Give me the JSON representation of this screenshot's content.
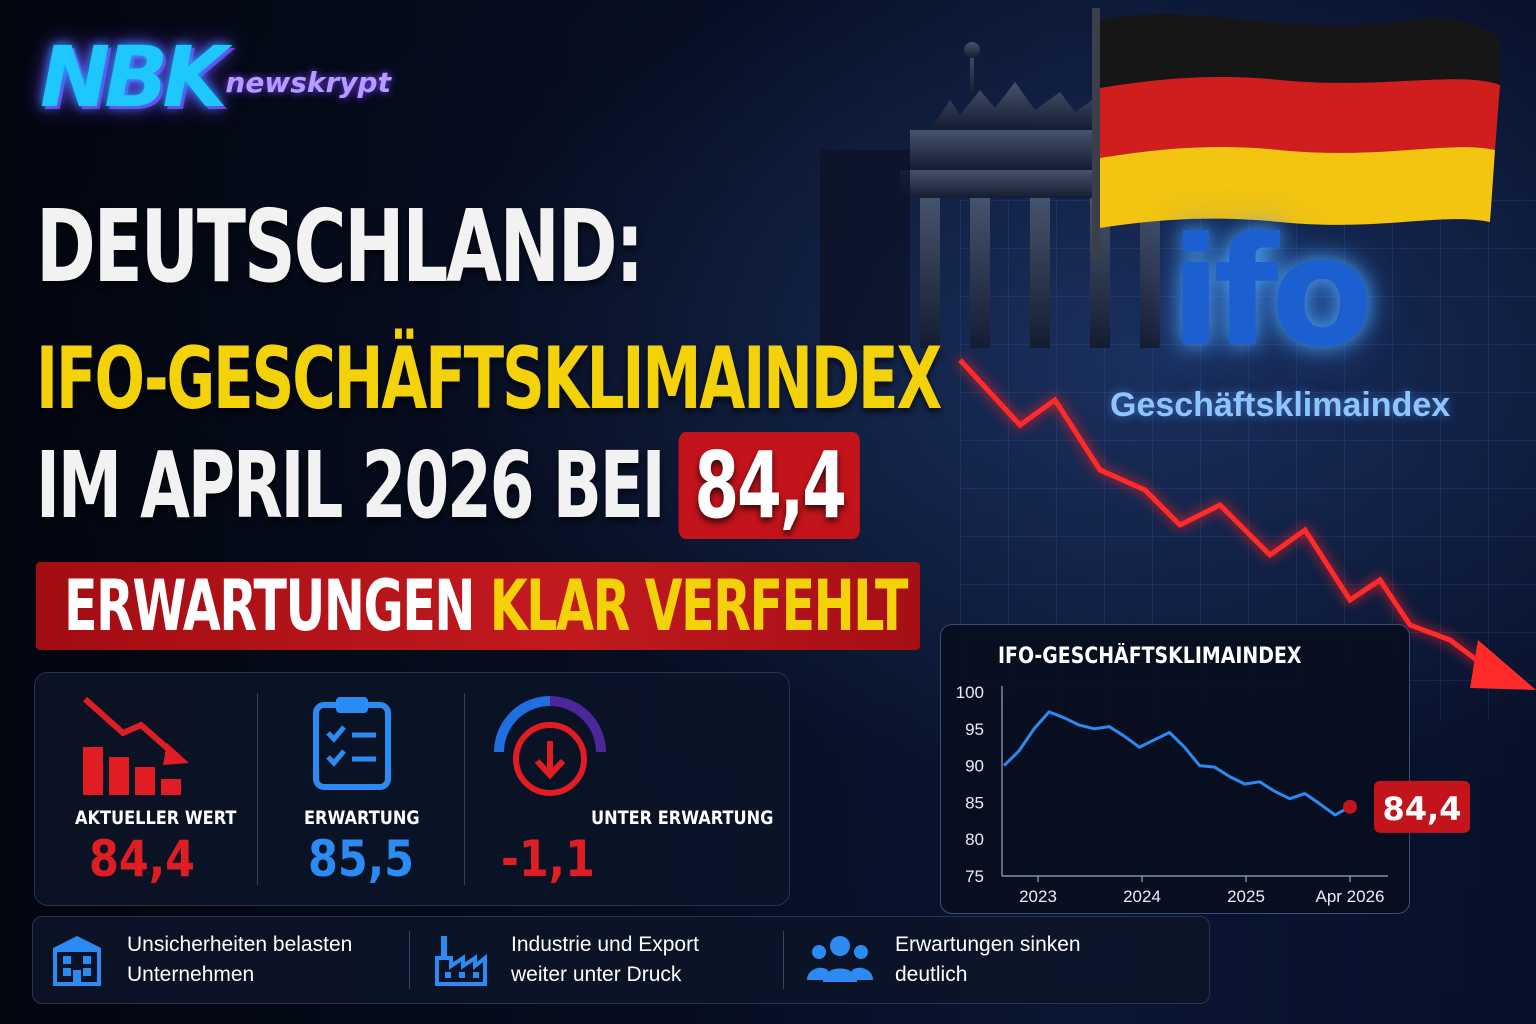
{
  "brand": {
    "mark": "NBK",
    "name": "newskrypt"
  },
  "headline": {
    "line1": "DEUTSCHLAND:",
    "line2": "IFO-GESCHÄFTSKLIMAINDEX",
    "line3_prefix": "IM APRIL 2026 BEI",
    "line3_value": "84,4",
    "banner_white": "ERWARTUNGEN",
    "banner_yellow": "KLAR VERFEHLT"
  },
  "stats": [
    {
      "label": "AKTUELLER WERT",
      "value": "84,4",
      "color": "#e11d24",
      "icon": "bar-chart-down-icon"
    },
    {
      "label": "ERWARTUNG",
      "value": "85,5",
      "color": "#2b8bf2",
      "icon": "clipboard-check-icon"
    },
    {
      "label": "UNTER ERWARTUNG",
      "value": "-1,1",
      "color": "#e11d24",
      "icon": "down-arrow-gauge-icon"
    }
  ],
  "bottom": [
    {
      "icon": "building-icon",
      "line1": "Unsicherheiten belasten",
      "line2": "Unternehmen"
    },
    {
      "icon": "factory-icon",
      "line1": "Industrie und Export",
      "line2": "weiter unter Druck"
    },
    {
      "icon": "people-icon",
      "line1": "Erwartungen sinken",
      "line2": "deutlich"
    }
  ],
  "ifo": {
    "logo": "ifo",
    "subtitle": "Geschäftsklimaindex"
  },
  "chart_data": {
    "type": "line",
    "title": "IFO-GESCHÄFTSKLIMAINDEX",
    "xlabel": "",
    "ylabel": "",
    "ylim": [
      75,
      100
    ],
    "yticks": [
      "100",
      "95",
      "90",
      "85",
      "80",
      "75"
    ],
    "xticks": [
      "2023",
      "2024",
      "2025",
      "Apr 2026"
    ],
    "series": [
      {
        "values": [
          90,
          92,
          95,
          97.3,
          96.5,
          95.5,
          95,
          95.3,
          94,
          92.5,
          93.5,
          94.5,
          92.5,
          90,
          89.8,
          88.5,
          87.5,
          87.8,
          86.5,
          85.5,
          86.2,
          84.8,
          83.3,
          84.4
        ]
      }
    ],
    "last_value_label": "84,4",
    "accent_color": "#2b8bf2",
    "highlight_color": "#c4141b",
    "grid": false
  }
}
